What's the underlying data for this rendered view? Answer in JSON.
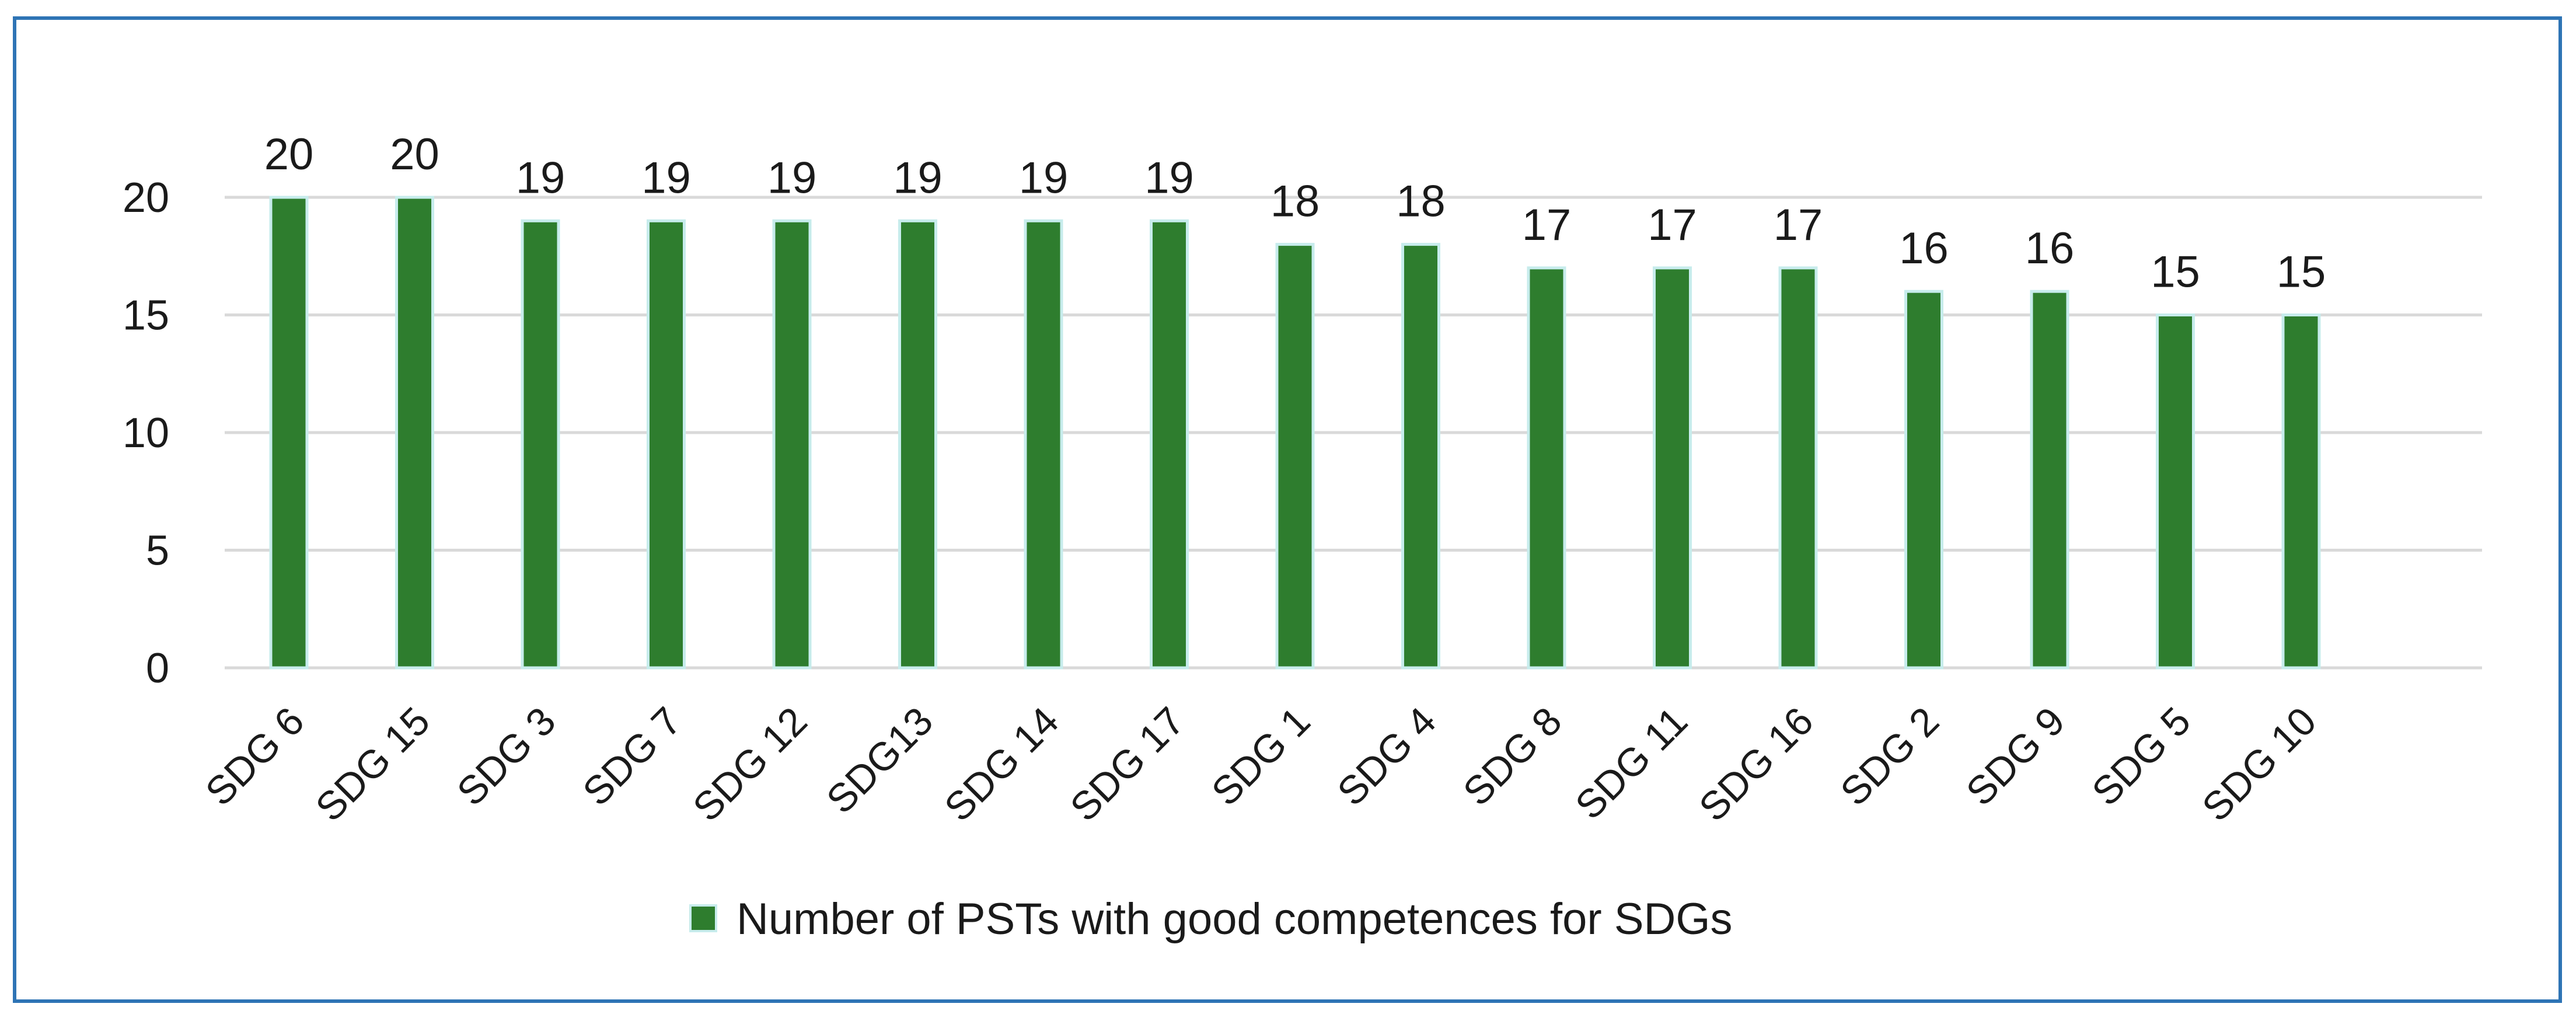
{
  "colors": {
    "bar": "#2e7d2e",
    "bar_outline": "#c7ecec",
    "frame": "#2e74b5",
    "grid": "#d9d9d9"
  },
  "chart_data": {
    "type": "bar",
    "title": "",
    "xlabel": "",
    "ylabel": "",
    "ylim": [
      0,
      20
    ],
    "yticks": [
      0,
      5,
      10,
      15,
      20
    ],
    "grid": true,
    "legend_position": "bottom",
    "categories": [
      "SDG 6",
      "SDG 15",
      "SDG 3",
      "SDG 7",
      "SDG 12",
      "SDG13",
      "SDG 14",
      "SDG 17",
      "SDG 1",
      "SDG 4",
      "SDG 8",
      "SDG 11",
      "SDG 16",
      "SDG 2",
      "SDG 9",
      "SDG 5",
      "SDG 10"
    ],
    "series": [
      {
        "name": "Number of PSTs with good competences for SDGs",
        "values": [
          20,
          20,
          19,
          19,
          19,
          19,
          19,
          19,
          18,
          18,
          17,
          17,
          17,
          16,
          16,
          15,
          15
        ]
      }
    ]
  }
}
